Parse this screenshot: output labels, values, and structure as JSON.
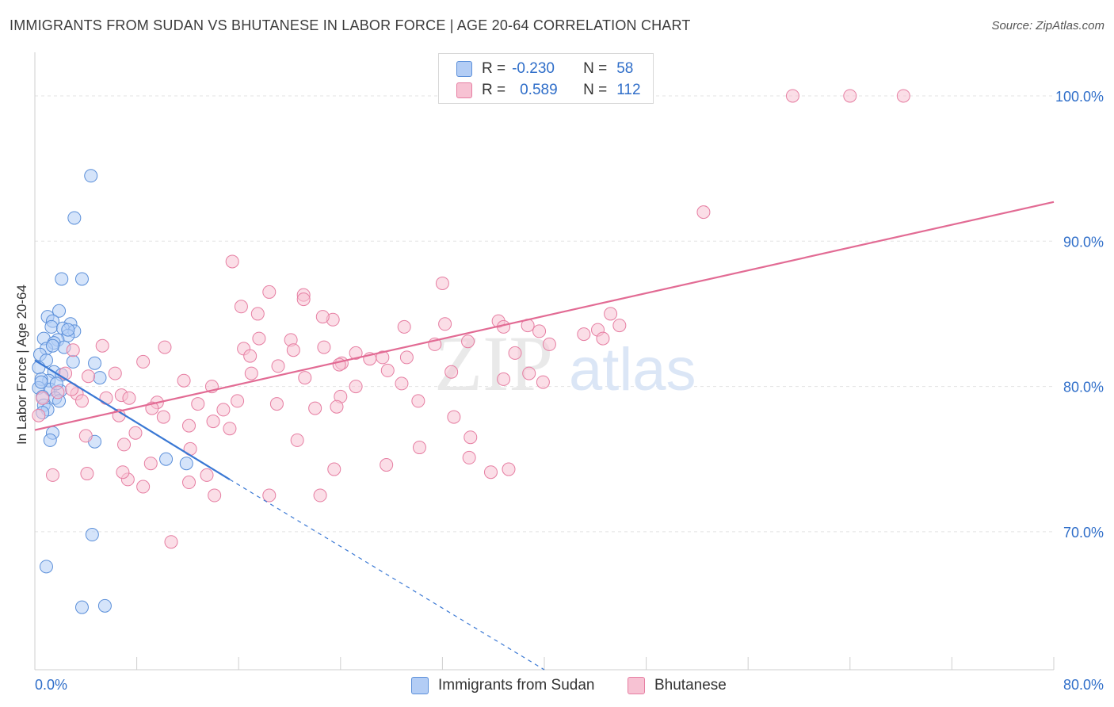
{
  "header": {
    "title": "IMMIGRANTS FROM SUDAN VS BHUTANESE IN LABOR FORCE | AGE 20-64 CORRELATION CHART",
    "source": "Source: ZipAtlas.com"
  },
  "watermark": {
    "zip": "ZIP",
    "atlas": "atlas"
  },
  "legend": {
    "rows": [
      {
        "r_label": "R =",
        "r_value": "-0.230",
        "n_label": "N =",
        "n_value": "58"
      },
      {
        "r_label": "R =",
        "r_value": "0.589",
        "n_label": "N =",
        "n_value": "112"
      }
    ]
  },
  "chart_data": {
    "type": "scatter",
    "xlabel": "",
    "ylabel": "In Labor Force | Age 20-64",
    "xlim": [
      0,
      80
    ],
    "ylim": [
      60.5,
      103
    ],
    "x_tick_labels": [
      "0.0%",
      "80.0%"
    ],
    "y_ticks": [
      70,
      80,
      90,
      100
    ],
    "y_tick_labels": [
      "70.0%",
      "80.0%",
      "90.0%",
      "100.0%"
    ],
    "grid": true,
    "colors": {
      "sudan_fill": "#b3cdf5",
      "sudan_stroke": "#5b8fd9",
      "sudan_line": "#3a78d4",
      "bhutanese_fill": "#f7c2d3",
      "bhutanese_stroke": "#e67ea2",
      "bhutanese_line": "#e26b94",
      "axis_text": "#2f6ec9"
    },
    "series": [
      {
        "name": "Immigrants from Sudan",
        "points": [
          [
            4.4,
            94.5
          ],
          [
            3.1,
            91.6
          ],
          [
            2.1,
            87.4
          ],
          [
            3.7,
            87.4
          ],
          [
            1.9,
            85.2
          ],
          [
            1.0,
            84.8
          ],
          [
            1.4,
            84.5
          ],
          [
            2.8,
            84.3
          ],
          [
            1.3,
            84.1
          ],
          [
            2.2,
            84.0
          ],
          [
            3.1,
            83.8
          ],
          [
            2.6,
            83.5
          ],
          [
            1.8,
            83.2
          ],
          [
            0.7,
            83.3
          ],
          [
            1.5,
            83.0
          ],
          [
            2.3,
            82.7
          ],
          [
            0.9,
            82.6
          ],
          [
            1.4,
            82.8
          ],
          [
            0.4,
            82.2
          ],
          [
            0.9,
            81.8
          ],
          [
            3.0,
            81.7
          ],
          [
            4.7,
            81.6
          ],
          [
            0.3,
            81.3
          ],
          [
            1.5,
            81.0
          ],
          [
            2.1,
            80.8
          ],
          [
            1.1,
            80.4
          ],
          [
            0.5,
            80.5
          ],
          [
            5.1,
            80.6
          ],
          [
            0.3,
            79.9
          ],
          [
            1.2,
            79.8
          ],
          [
            2.0,
            79.7
          ],
          [
            0.6,
            79.3
          ],
          [
            1.6,
            79.2
          ],
          [
            1.9,
            79.0
          ],
          [
            0.7,
            78.7
          ],
          [
            1.0,
            78.4
          ],
          [
            0.6,
            78.2
          ],
          [
            1.4,
            76.8
          ],
          [
            1.2,
            76.3
          ],
          [
            4.7,
            76.2
          ],
          [
            10.3,
            75.0
          ],
          [
            11.9,
            74.7
          ],
          [
            4.5,
            69.8
          ],
          [
            0.9,
            67.6
          ],
          [
            3.7,
            64.8
          ],
          [
            5.5,
            64.9
          ],
          [
            0.5,
            80.3
          ],
          [
            2.6,
            83.9
          ],
          [
            1.7,
            80.2
          ]
        ]
      },
      {
        "name": "Bhutanese",
        "points": [
          [
            59.5,
            100.0
          ],
          [
            64.0,
            100.0
          ],
          [
            68.2,
            100.0
          ],
          [
            52.5,
            92.0
          ],
          [
            15.5,
            88.6
          ],
          [
            32.0,
            87.1
          ],
          [
            18.4,
            86.5
          ],
          [
            21.1,
            86.3
          ],
          [
            21.1,
            86.0
          ],
          [
            16.2,
            85.5
          ],
          [
            17.5,
            85.0
          ],
          [
            45.2,
            85.0
          ],
          [
            36.4,
            84.5
          ],
          [
            23.4,
            84.6
          ],
          [
            45.9,
            84.2
          ],
          [
            22.6,
            84.8
          ],
          [
            44.2,
            83.9
          ],
          [
            32.2,
            84.3
          ],
          [
            39.6,
            83.8
          ],
          [
            38.7,
            84.2
          ],
          [
            36.8,
            84.1
          ],
          [
            29.0,
            84.1
          ],
          [
            43.1,
            83.6
          ],
          [
            17.6,
            83.3
          ],
          [
            20.1,
            83.2
          ],
          [
            34.0,
            83.1
          ],
          [
            40.4,
            82.9
          ],
          [
            31.4,
            82.9
          ],
          [
            22.7,
            82.7
          ],
          [
            10.2,
            82.7
          ],
          [
            5.3,
            82.8
          ],
          [
            16.4,
            82.6
          ],
          [
            20.3,
            82.5
          ],
          [
            3.0,
            82.5
          ],
          [
            25.2,
            82.3
          ],
          [
            37.7,
            82.3
          ],
          [
            16.9,
            82.1
          ],
          [
            27.3,
            82.0
          ],
          [
            29.2,
            82.0
          ],
          [
            24.1,
            81.6
          ],
          [
            19.1,
            81.4
          ],
          [
            8.5,
            81.7
          ],
          [
            23.9,
            81.5
          ],
          [
            27.7,
            81.1
          ],
          [
            32.7,
            81.0
          ],
          [
            38.8,
            80.9
          ],
          [
            17.0,
            80.9
          ],
          [
            21.2,
            80.6
          ],
          [
            11.7,
            80.4
          ],
          [
            36.8,
            80.5
          ],
          [
            4.2,
            80.7
          ],
          [
            6.3,
            80.9
          ],
          [
            2.4,
            80.9
          ],
          [
            28.8,
            80.2
          ],
          [
            25.2,
            80.0
          ],
          [
            13.9,
            80.0
          ],
          [
            1.8,
            79.6
          ],
          [
            3.3,
            79.5
          ],
          [
            6.8,
            79.4
          ],
          [
            7.4,
            79.2
          ],
          [
            24.0,
            79.3
          ],
          [
            9.6,
            78.9
          ],
          [
            3.7,
            79.0
          ],
          [
            30.1,
            79.0
          ],
          [
            19.0,
            78.8
          ],
          [
            23.7,
            78.6
          ],
          [
            12.8,
            78.8
          ],
          [
            14.8,
            78.4
          ],
          [
            6.6,
            78.0
          ],
          [
            9.2,
            78.5
          ],
          [
            10.1,
            77.9
          ],
          [
            32.9,
            77.9
          ],
          [
            14.0,
            77.6
          ],
          [
            12.1,
            77.3
          ],
          [
            15.3,
            77.1
          ],
          [
            7.9,
            76.8
          ],
          [
            34.2,
            76.5
          ],
          [
            20.6,
            76.3
          ],
          [
            30.2,
            75.8
          ],
          [
            12.2,
            75.7
          ],
          [
            27.6,
            74.6
          ],
          [
            1.4,
            73.9
          ],
          [
            13.5,
            73.9
          ],
          [
            7.3,
            73.6
          ],
          [
            6.9,
            74.1
          ],
          [
            4.1,
            74.0
          ],
          [
            23.5,
            74.3
          ],
          [
            34.1,
            75.1
          ],
          [
            35.8,
            74.1
          ],
          [
            37.2,
            74.3
          ],
          [
            12.1,
            73.4
          ],
          [
            8.5,
            73.1
          ],
          [
            14.1,
            72.5
          ],
          [
            18.4,
            72.5
          ],
          [
            22.4,
            72.5
          ],
          [
            4.0,
            76.6
          ],
          [
            0.3,
            78.0
          ],
          [
            10.7,
            69.3
          ],
          [
            0.6,
            79.2
          ],
          [
            2.9,
            79.8
          ],
          [
            5.6,
            79.2
          ],
          [
            7.0,
            76.0
          ],
          [
            26.3,
            81.9
          ],
          [
            15.9,
            79.0
          ],
          [
            44.6,
            83.3
          ],
          [
            39.9,
            80.3
          ],
          [
            22.0,
            78.5
          ],
          [
            9.1,
            74.7
          ]
        ]
      }
    ],
    "trend_lines": [
      {
        "series": "Immigrants from Sudan",
        "solid": [
          [
            0,
            81.8
          ],
          [
            15.3,
            73.6
          ]
        ],
        "dashed": [
          [
            15.3,
            73.6
          ],
          [
            40.0,
            60.5
          ]
        ]
      },
      {
        "series": "Bhutanese",
        "solid": [
          [
            0,
            77.0
          ],
          [
            80,
            92.7
          ]
        ]
      }
    ]
  }
}
